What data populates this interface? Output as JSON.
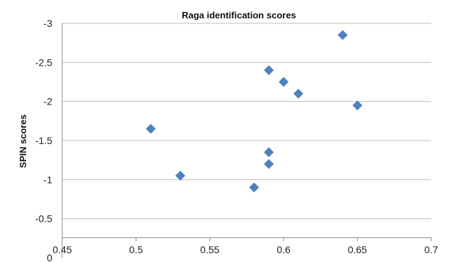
{
  "chart_data": {
    "type": "scatter",
    "title": "Raga identification scores",
    "xlabel": "",
    "ylabel": "SPIN scores",
    "xlim": [
      0.45,
      0.7
    ],
    "ylim": [
      0,
      -3
    ],
    "x_axis_position": "top",
    "y_axis_reversed": true,
    "grid": "horizontal",
    "legend": "none",
    "marker": "diamond",
    "color": "#4F81BD",
    "x_ticks": [
      "0.45",
      "0.5",
      "0.55",
      "0.6",
      "0.65",
      "0.7"
    ],
    "y_ticks": [
      "0",
      "-0.5",
      "-1",
      "-1.5",
      "-2",
      "-2.5",
      "-3"
    ],
    "series": [
      {
        "x": [
          0.51,
          0.53,
          0.58,
          0.59,
          0.59,
          0.59,
          0.6,
          0.61,
          0.64,
          0.65
        ],
        "y": [
          -1.65,
          -1.05,
          -0.9,
          -1.2,
          -1.35,
          -2.4,
          -2.25,
          -2.1,
          -2.85,
          -1.95
        ]
      }
    ]
  }
}
